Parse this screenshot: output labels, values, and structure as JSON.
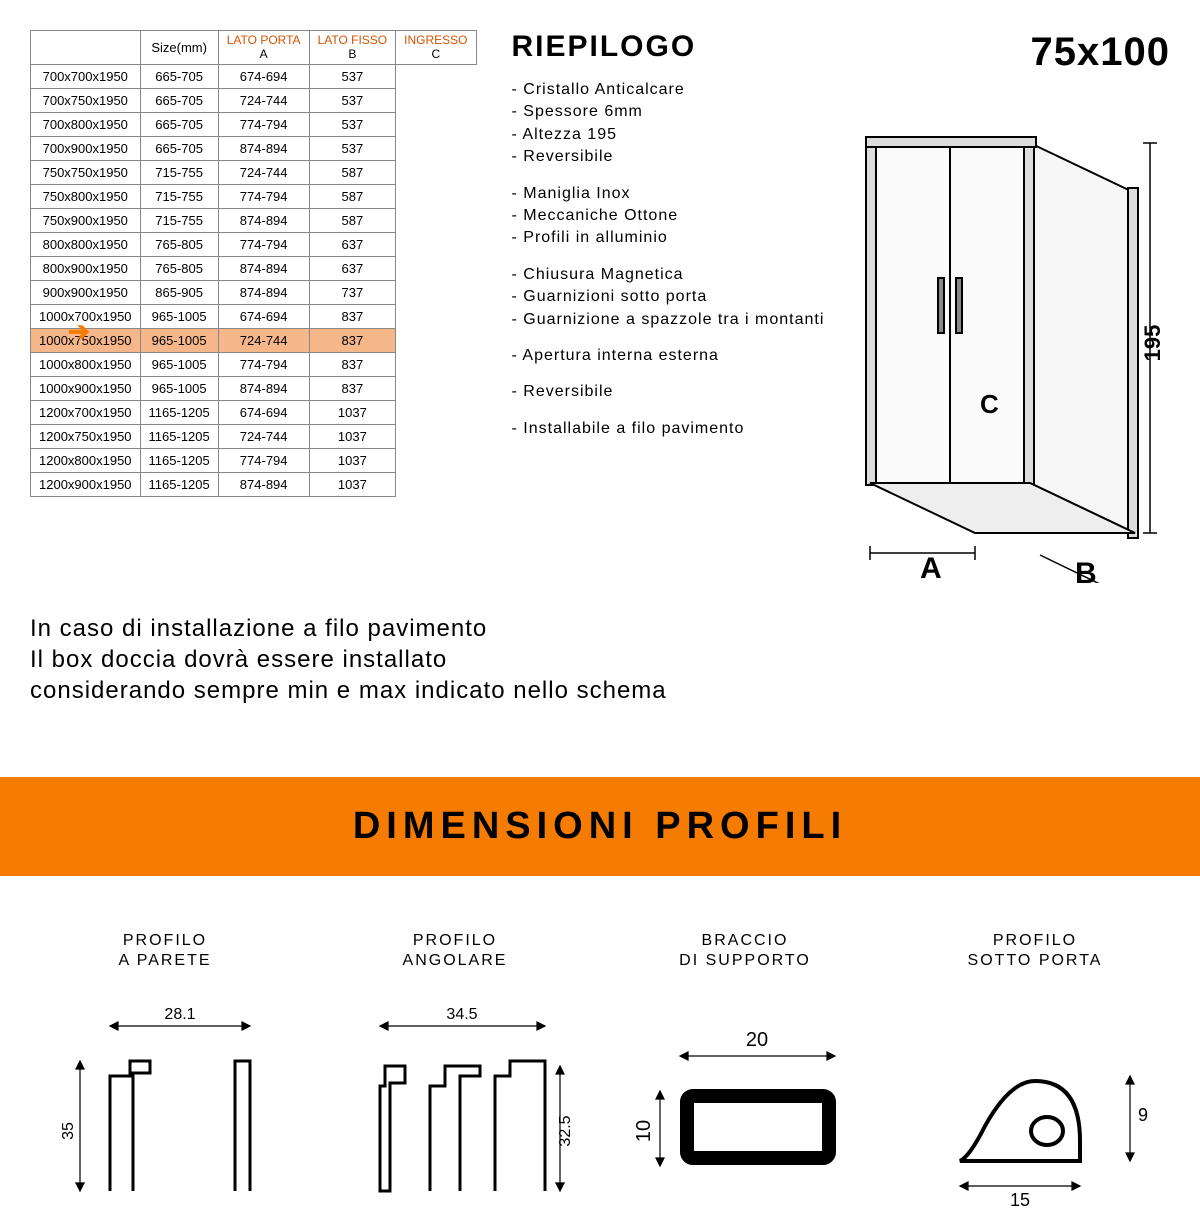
{
  "table": {
    "headers": {
      "size": "Size(mm)",
      "porta": "LATO PORTA",
      "porta_sub": "A",
      "fisso": "LATO FISSO",
      "fisso_sub": "B",
      "ingresso": "INGRESSO",
      "ingresso_sub": "C"
    },
    "rows": [
      {
        "size": "700x700x1950",
        "a": "665-705",
        "b": "674-694",
        "c": "537",
        "hi": false
      },
      {
        "size": "700x750x1950",
        "a": "665-705",
        "b": "724-744",
        "c": "537",
        "hi": false
      },
      {
        "size": "700x800x1950",
        "a": "665-705",
        "b": "774-794",
        "c": "537",
        "hi": false
      },
      {
        "size": "700x900x1950",
        "a": "665-705",
        "b": "874-894",
        "c": "537",
        "hi": false
      },
      {
        "size": "750x750x1950",
        "a": "715-755",
        "b": "724-744",
        "c": "587",
        "hi": false
      },
      {
        "size": "750x800x1950",
        "a": "715-755",
        "b": "774-794",
        "c": "587",
        "hi": false
      },
      {
        "size": "750x900x1950",
        "a": "715-755",
        "b": "874-894",
        "c": "587",
        "hi": false
      },
      {
        "size": "800x800x1950",
        "a": "765-805",
        "b": "774-794",
        "c": "637",
        "hi": false
      },
      {
        "size": "800x900x1950",
        "a": "765-805",
        "b": "874-894",
        "c": "637",
        "hi": false
      },
      {
        "size": "900x900x1950",
        "a": "865-905",
        "b": "874-894",
        "c": "737",
        "hi": false
      },
      {
        "size": "1000x700x1950",
        "a": "965-1005",
        "b": "674-694",
        "c": "837",
        "hi": false
      },
      {
        "size": "1000x750x1950",
        "a": "965-1005",
        "b": "724-744",
        "c": "837",
        "hi": true
      },
      {
        "size": "1000x800x1950",
        "a": "965-1005",
        "b": "774-794",
        "c": "837",
        "hi": false
      },
      {
        "size": "1000x900x1950",
        "a": "965-1005",
        "b": "874-894",
        "c": "837",
        "hi": false
      },
      {
        "size": "1200x700x1950",
        "a": "1165-1205",
        "b": "674-694",
        "c": "1037",
        "hi": false
      },
      {
        "size": "1200x750x1950",
        "a": "1165-1205",
        "b": "724-744",
        "c": "1037",
        "hi": false
      },
      {
        "size": "1200x800x1950",
        "a": "1165-1205",
        "b": "774-794",
        "c": "1037",
        "hi": false
      },
      {
        "size": "1200x900x1950",
        "a": "1165-1205",
        "b": "874-894",
        "c": "1037",
        "hi": false
      }
    ],
    "highlight_index": 11
  },
  "summary": {
    "title": "RIEPILOGO",
    "groups": [
      [
        "Cristallo Anticalcare",
        "Spessore 6mm",
        "Altezza 195",
        "Reversibile"
      ],
      [
        "Maniglia Inox",
        "Meccaniche Ottone",
        "Profili in alluminio"
      ],
      [
        "Chiusura Magnetica",
        "Guarnizioni sotto porta",
        "Guarnizione a spazzole tra i montanti"
      ],
      [
        "Apertura interna esterna"
      ],
      [
        "Reversibile"
      ],
      [
        "Installabile a filo pavimento"
      ]
    ]
  },
  "diagram": {
    "model": "75x100",
    "height_label": "195",
    "label_a": "A",
    "label_b": "B",
    "label_c": "C"
  },
  "note": {
    "l1": "In caso di installazione a filo pavimento",
    "l2": "Il box doccia dovrà essere installato",
    "l3": "considerando sempre min e max indicato nello schema"
  },
  "banner": "DIMENSIONI PROFILI",
  "profiles": [
    {
      "title_l1": "PROFILO",
      "title_l2": "A PARETE",
      "w": "28.1",
      "h": "35"
    },
    {
      "title_l1": "PROFILO",
      "title_l2": "ANGOLARE",
      "w": "34.5",
      "h": "32.5"
    },
    {
      "title_l1": "BRACCIO",
      "title_l2": "DI SUPPORTO",
      "w": "20",
      "h": "10"
    },
    {
      "title_l1": "PROFILO",
      "title_l2": "SOTTO PORTA",
      "w": "15",
      "h": "9"
    }
  ],
  "colors": {
    "accent": "#f57c00",
    "highlight": "#f5b78a",
    "header_red": "#d35400"
  }
}
